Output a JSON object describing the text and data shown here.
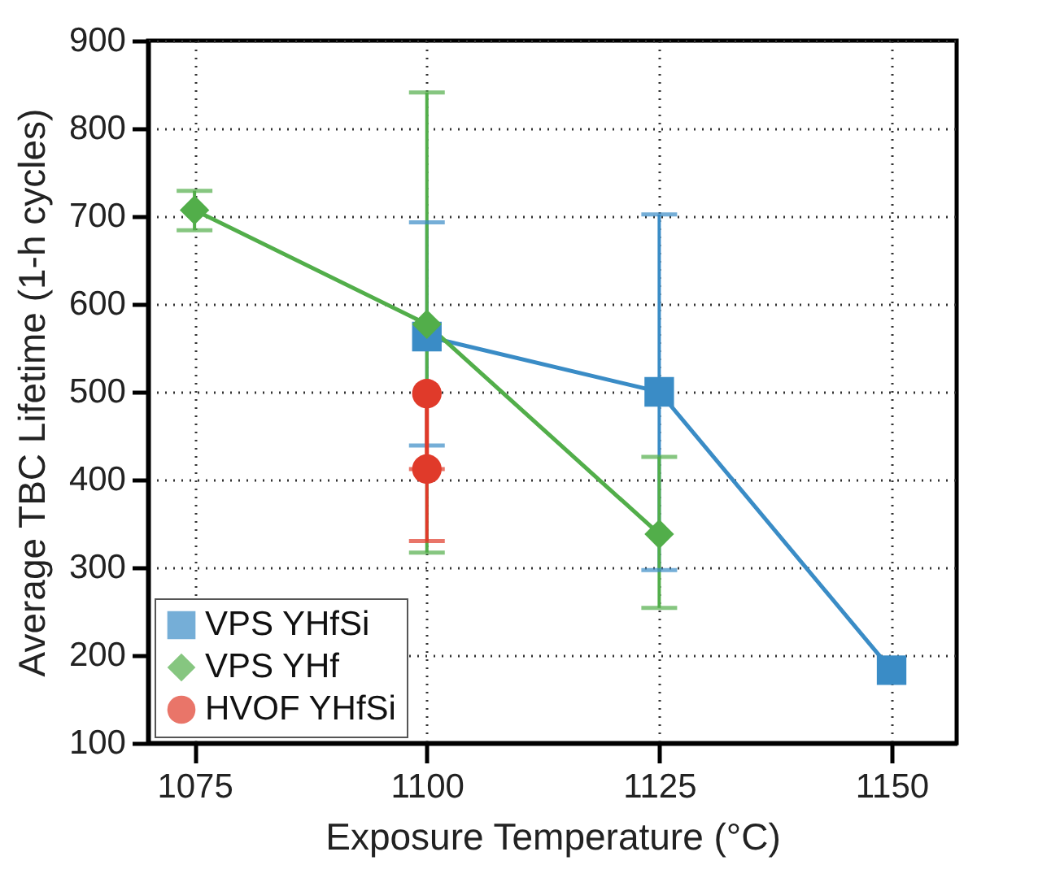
{
  "chart_data": {
    "type": "line",
    "xlabel": "Exposure Temperature (°C)",
    "ylabel": "Average TBC Lifetime (1-h cycles)",
    "xlim": [
      1070,
      1157
    ],
    "xticks": [
      1075,
      1100,
      1125,
      1150
    ],
    "ylim": [
      100,
      900
    ],
    "yticks": [
      100,
      200,
      300,
      400,
      500,
      600,
      700,
      800,
      900
    ],
    "grid": true,
    "legend": "bottom left",
    "line_style": "solid",
    "series": [
      {
        "name": "VPS YHfSi",
        "color": "#3a8cc6",
        "marker": "square",
        "x": [
          1100,
          1125,
          1150
        ],
        "values": [
          563,
          500,
          183
        ],
        "errors": [
          [
            439,
            693
          ],
          [
            297,
            702
          ],
          null
        ]
      },
      {
        "name": "VPS YHf",
        "color": "#52ae4a",
        "marker": "diamond",
        "x": [
          1075,
          1100,
          1125
        ],
        "values": [
          707,
          577,
          338
        ],
        "errors": [
          [
            684,
            729
          ],
          [
            317,
            841
          ],
          [
            254,
            426
          ]
        ]
      },
      {
        "name": "HVOF YHfSi",
        "color": "#e03a2a",
        "marker": "circle",
        "x": [
          1100,
          1100
        ],
        "values": [
          498,
          412
        ],
        "errors": [
          null,
          [
            330,
            412
          ]
        ]
      }
    ]
  }
}
